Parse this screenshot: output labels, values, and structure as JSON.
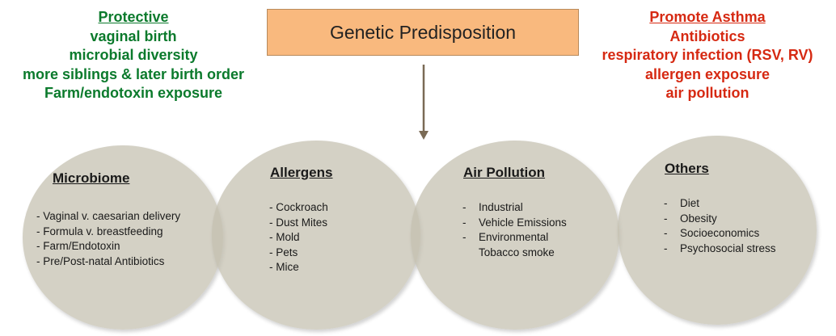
{
  "colors": {
    "protective": "#0b7a2c",
    "promote": "#d62912",
    "genetic_box": "#f9b97e",
    "arrow": "#7a6a55"
  },
  "protective": {
    "title": "Protective",
    "items": [
      "vaginal birth",
      "microbial diversity",
      "more siblings & later birth order",
      "Farm/endotoxin exposure"
    ]
  },
  "genetic": {
    "label": "Genetic Predisposition"
  },
  "promote": {
    "title": "Promote Asthma",
    "items": [
      "Antibiotics",
      "respiratory infection (RSV, RV)",
      "allergen exposure",
      "air pollution"
    ]
  },
  "circles": [
    {
      "title": "Microbiome",
      "items": [
        "- Vaginal v. caesarian delivery",
        "- Formula v. breastfeeding",
        "- Farm/Endotoxin",
        "- Pre/Post-natal Antibiotics"
      ]
    },
    {
      "title": "Allergens",
      "items": [
        "- Cockroach",
        "- Dust Mites",
        "- Mold",
        "- Pets",
        "- Mice"
      ]
    },
    {
      "title": "Air Pollution",
      "items": [
        "Industrial",
        "Vehicle Emissions",
        "Environmental",
        "Tobacco smoke"
      ]
    },
    {
      "title": "Others",
      "items": [
        "Diet",
        "Obesity",
        "Socioeconomics",
        "Psychosocial stress"
      ]
    }
  ]
}
